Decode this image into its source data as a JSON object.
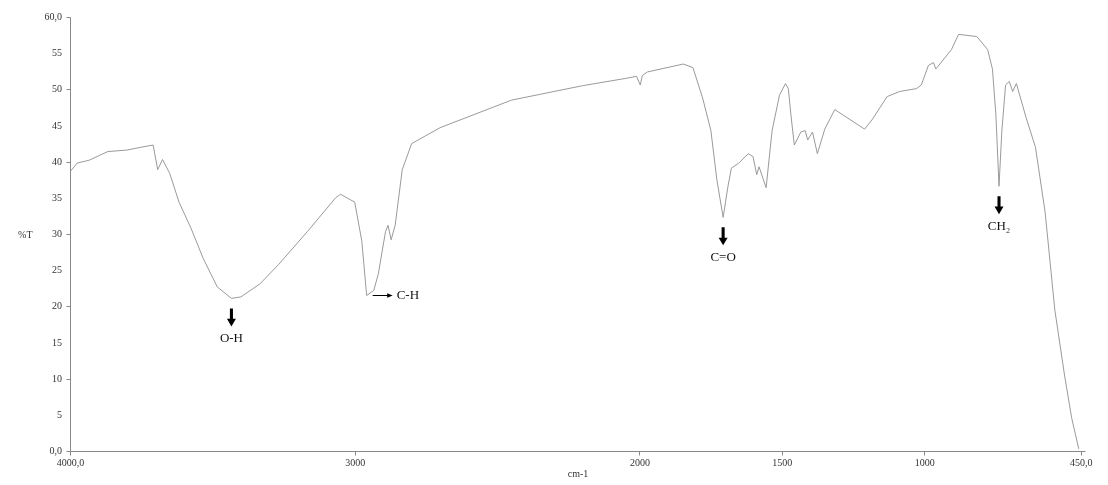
{
  "chart_data": {
    "type": "line",
    "xlabel": "cm-1",
    "ylabel": "%T",
    "xlim": [
      4000,
      435
    ],
    "ylim": [
      0,
      60
    ],
    "xticks": [
      {
        "value": 4000,
        "label": "4000,0"
      },
      3000,
      2000,
      1500,
      1000,
      {
        "value": 450,
        "label": "450,0"
      }
    ],
    "yticks": [
      {
        "value": 0,
        "label": "0,0"
      },
      5,
      10,
      15,
      20,
      25,
      30,
      35,
      40,
      45,
      50,
      55,
      {
        "value": 60,
        "label": "60,0"
      }
    ],
    "grid": false,
    "marker": "none",
    "line_style": "solid",
    "x": [
      4000,
      3975,
      3933,
      3867,
      3800,
      3750,
      3708,
      3692,
      3675,
      3650,
      3617,
      3575,
      3533,
      3483,
      3433,
      3400,
      3333,
      3267,
      3167,
      3067,
      3050,
      3000,
      2975,
      2958,
      2933,
      2917,
      2892,
      2883,
      2872,
      2858,
      2833,
      2800,
      2700,
      2450,
      2200,
      2050,
      2010,
      1997,
      1990,
      1972,
      1846,
      1812,
      1778,
      1749,
      1728,
      1706,
      1689,
      1677,
      1651,
      1618,
      1601,
      1588,
      1580,
      1555,
      1534,
      1508,
      1487,
      1477,
      1468,
      1456,
      1433,
      1418,
      1409,
      1392,
      1375,
      1349,
      1314,
      1209,
      1181,
      1130,
      1086,
      1027,
      1010,
      985,
      967,
      959,
      904,
      879,
      815,
      777,
      760,
      748,
      737,
      727,
      714,
      701,
      689,
      676,
      642,
      609,
      575,
      541,
      507,
      482,
      457
    ],
    "series": [
      {
        "color": "#9a9a9a",
        "values": [
          38.6,
          39.8,
          40.2,
          41.4,
          41.6,
          42.0,
          42.3,
          38.9,
          40.3,
          38.4,
          34.4,
          30.8,
          26.7,
          22.7,
          21.1,
          21.3,
          23.1,
          25.8,
          30.3,
          35.0,
          35.5,
          34.4,
          29.0,
          21.5,
          22.2,
          24.5,
          30.3,
          31.2,
          29.2,
          31.2,
          38.9,
          42.5,
          44.7,
          48.5,
          50.5,
          51.5,
          51.8,
          50.6,
          51.9,
          52.4,
          53.5,
          53.0,
          48.8,
          44.3,
          37.5,
          32.3,
          36.6,
          39.1,
          39.8,
          41.1,
          40.7,
          38.2,
          39.3,
          36.4,
          44.3,
          49.2,
          50.8,
          50.1,
          46.5,
          42.3,
          44.1,
          44.3,
          43.0,
          44.1,
          41.1,
          44.5,
          47.2,
          44.5,
          45.9,
          49.0,
          49.7,
          50.1,
          50.6,
          53.3,
          53.7,
          52.8,
          55.5,
          57.6,
          57.3,
          55.5,
          52.8,
          46.5,
          36.6,
          44.3,
          50.6,
          51.1,
          49.7,
          50.8,
          46.1,
          42.0,
          33.0,
          19.5,
          10.5,
          4.6,
          0.3
        ]
      }
    ],
    "annotations": [
      {
        "text": "O-H",
        "x": 3433,
        "y": 21.1
      },
      {
        "text": "C-H",
        "x": 2958,
        "y": 21.5
      },
      {
        "text": "C=O",
        "x": 1706,
        "y": 32.3
      },
      {
        "text": "CH₂",
        "x": 737,
        "y": 36.6
      }
    ]
  }
}
